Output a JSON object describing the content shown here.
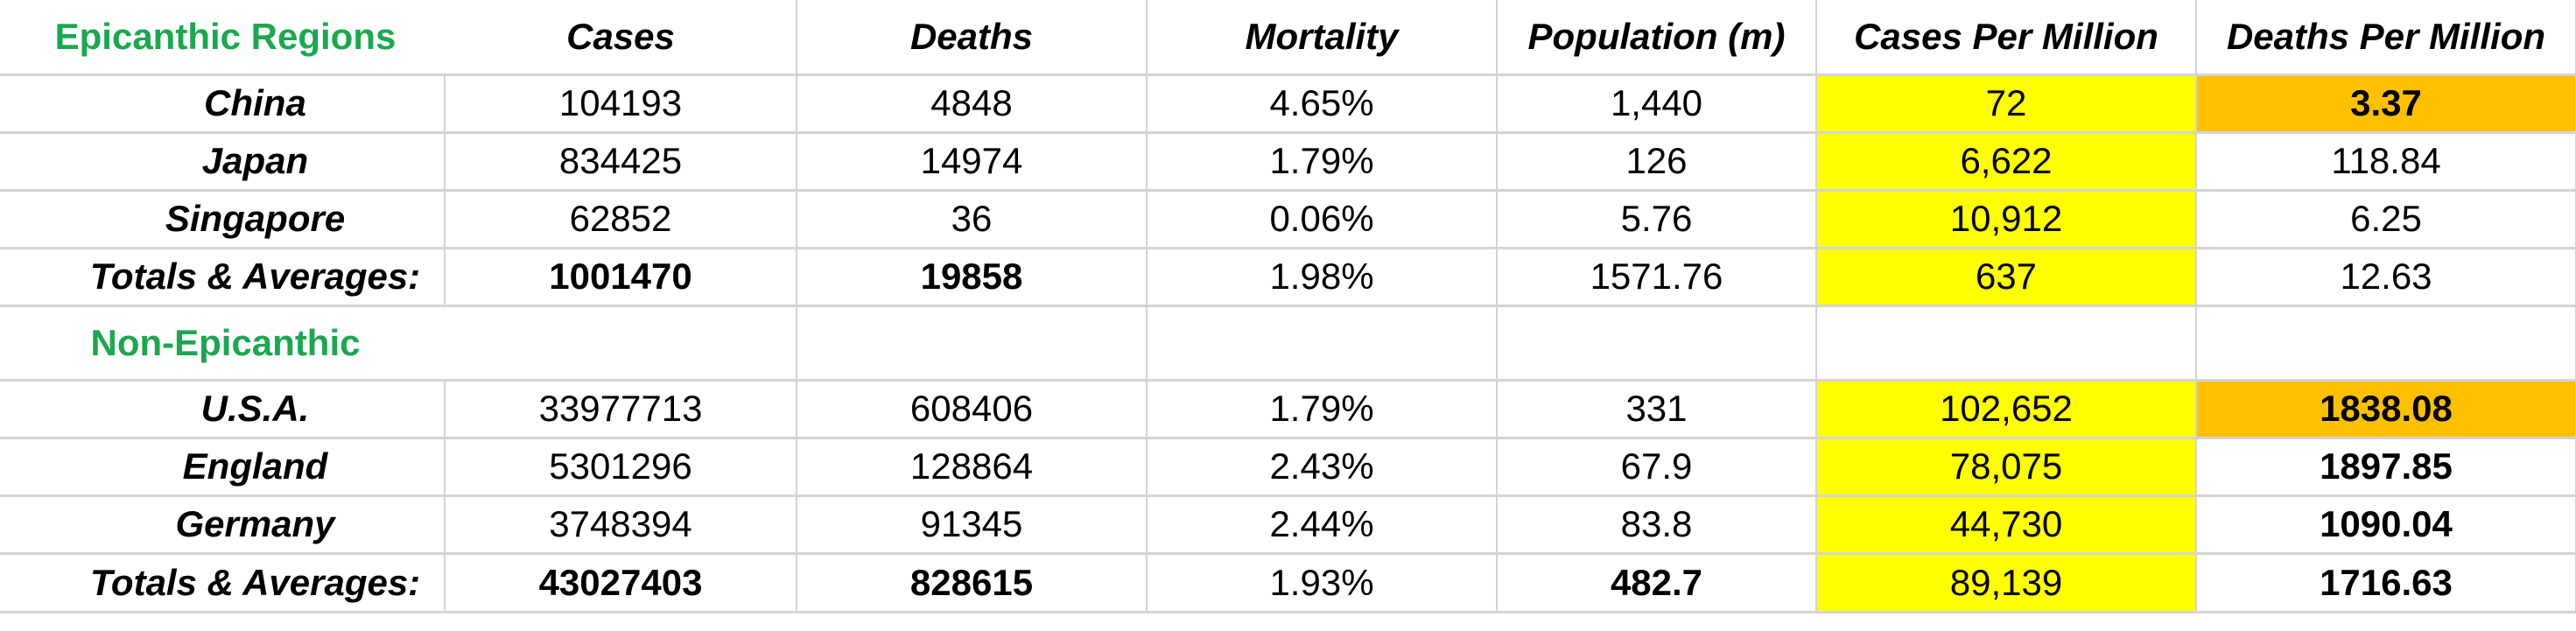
{
  "colors": {
    "region_heading": "#1aa84f",
    "highlight_yellow": "#ffff00",
    "highlight_orange": "#ffc000",
    "gridline": "#d4d4d4"
  },
  "columns": [
    "Cases",
    "Deaths",
    "Mortality",
    "Population (m)",
    "Cases Per Million",
    "Deaths Per Million"
  ],
  "sections": [
    {
      "title": "Epicanthic Regions",
      "rows": [
        {
          "label": "China",
          "cases": "104193",
          "deaths": "4848",
          "mortality": "4.65%",
          "population": "1,440",
          "cases_per_million": "72",
          "deaths_per_million": "3.37"
        },
        {
          "label": "Japan",
          "cases": "834425",
          "deaths": "14974",
          "mortality": "1.79%",
          "population": "126",
          "cases_per_million": "6,622",
          "deaths_per_million": "118.84"
        },
        {
          "label": "Singapore",
          "cases": "62852",
          "deaths": "36",
          "mortality": "0.06%",
          "population": "5.76",
          "cases_per_million": "10,912",
          "deaths_per_million": "6.25"
        }
      ],
      "totals": {
        "label": "Totals & Averages:",
        "cases": "1001470",
        "deaths": "19858",
        "mortality": "1.98%",
        "population": "1571.76",
        "cases_per_million": "637",
        "deaths_per_million": "12.63"
      }
    },
    {
      "title": "Non-Epicanthic",
      "rows": [
        {
          "label": "U.S.A.",
          "cases": "33977713",
          "deaths": "608406",
          "mortality": "1.79%",
          "population": "331",
          "cases_per_million": "102,652",
          "deaths_per_million": "1838.08"
        },
        {
          "label": "England",
          "cases": "5301296",
          "deaths": "128864",
          "mortality": "2.43%",
          "population": "67.9",
          "cases_per_million": "78,075",
          "deaths_per_million": "1897.85"
        },
        {
          "label": "Germany",
          "cases": "3748394",
          "deaths": "91345",
          "mortality": "2.44%",
          "population": "83.8",
          "cases_per_million": "44,730",
          "deaths_per_million": "1090.04"
        }
      ],
      "totals": {
        "label": "Totals & Averages:",
        "cases": "43027403",
        "deaths": "828615",
        "mortality": "1.93%",
        "population": "482.7",
        "cases_per_million": "89,139",
        "deaths_per_million": "1716.63"
      }
    }
  ]
}
